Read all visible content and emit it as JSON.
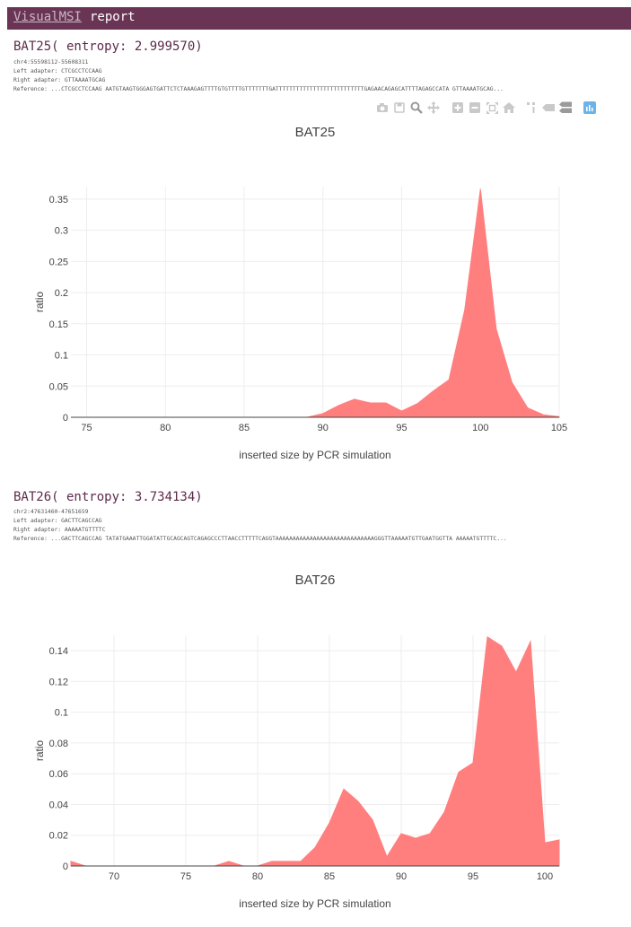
{
  "app": {
    "brand": "VisualMSI",
    "title_rest": "report"
  },
  "colors": {
    "header_bg": "#6a3555",
    "heading": "#5d2a4a",
    "fill": "#ff7f7f",
    "grid": "#eeeeee"
  },
  "toolbar": {
    "icons": [
      "camera-icon",
      "save-icon",
      "zoom-icon",
      "pan-icon",
      "zoom-in-icon",
      "zoom-out-icon",
      "autoscale-icon",
      "home-icon",
      "spike-lines-icon",
      "hover-closest-icon",
      "hover-compare-icon",
      "plotly-logo-icon"
    ]
  },
  "sections": [
    {
      "heading": "BAT25( entropy: 2.999570)",
      "locus": "chr4:55598112-55608311",
      "left_adapter": "Left adapter: CTCGCCTCCAAG",
      "right_adapter": "Right adapter: GTTAAAATGCAG",
      "reference": "Reference: ...CTCGCCTCCAAG AATGTAAGTGGGAGTGATTCTCTAAAGAGTTTTGTGTTTTGTTTTTTTGATTTTTTTTTTTTTTTTTTTTTTTTTTGAGAACAGAGCATTTTAGAGCCATA GTTAAAATGCAG..."
    },
    {
      "heading": "BAT26( entropy: 3.734134)",
      "locus": "chr2:47631460-47651659",
      "left_adapter": "Left adapter: GACTTCAGCCAG",
      "right_adapter": "Right adapter: AAAAATGTTTTC",
      "reference": "Reference: ...GACTTCAGCCAG TATATGAAATTGGATATTGCAGCAGTCAGAGCCCTTAACCTTTTTCAGGTAAAAAAAAAAAAAAAAAAAAAAAAAAAAAGGGTTAAAAATGTTGAATGGTTA AAAAATGTTTTC..."
    }
  ],
  "chart_data": [
    {
      "type": "area",
      "title": "BAT25",
      "xlabel": "inserted size by PCR simulation",
      "ylabel": "ratio",
      "xlim": [
        74,
        105
      ],
      "ylim": [
        0,
        0.37
      ],
      "xticks": [
        75,
        80,
        85,
        90,
        95,
        100,
        105
      ],
      "yticks": [
        0,
        0.05,
        0.1,
        0.15,
        0.2,
        0.25,
        0.3,
        0.35
      ],
      "ytick_labels": [
        "0",
        "0.05",
        "0.1",
        "0.15",
        "0.2",
        "0.25",
        "0.3",
        "0.35"
      ],
      "x": [
        74,
        75,
        76,
        77,
        78,
        79,
        80,
        81,
        82,
        83,
        84,
        85,
        86,
        87,
        88,
        89,
        90,
        91,
        92,
        93,
        94,
        95,
        96,
        97,
        98,
        99,
        100,
        101,
        102,
        103,
        104,
        105
      ],
      "y": [
        0,
        0,
        0,
        0,
        0,
        0,
        0,
        0,
        0,
        0,
        0,
        0,
        0,
        0,
        0,
        0,
        0.006,
        0.019,
        0.029,
        0.023,
        0.023,
        0.01,
        0.022,
        0.042,
        0.06,
        0.172,
        0.366,
        0.142,
        0.056,
        0.015,
        0.004,
        0.001
      ]
    },
    {
      "type": "area",
      "title": "BAT26",
      "xlabel": "inserted size by PCR simulation",
      "ylabel": "ratio",
      "xlim": [
        67,
        101
      ],
      "ylim": [
        0,
        0.15
      ],
      "xticks": [
        70,
        75,
        80,
        85,
        90,
        95,
        100
      ],
      "yticks": [
        0,
        0.02,
        0.04,
        0.06,
        0.08,
        0.1,
        0.12,
        0.14
      ],
      "ytick_labels": [
        "0",
        "0.02",
        "0.04",
        "0.06",
        "0.08",
        "0.1",
        "0.12",
        "0.14"
      ],
      "x": [
        67,
        68,
        69,
        70,
        71,
        72,
        73,
        74,
        75,
        76,
        77,
        78,
        79,
        80,
        81,
        82,
        83,
        84,
        85,
        86,
        87,
        88,
        89,
        90,
        91,
        92,
        93,
        94,
        95,
        96,
        97,
        98,
        99,
        100,
        101
      ],
      "y": [
        0.003,
        0,
        0,
        0,
        0,
        0,
        0,
        0,
        0,
        0,
        0,
        0.003,
        0,
        0,
        0.003,
        0.003,
        0.003,
        0.012,
        0.028,
        0.05,
        0.042,
        0.03,
        0.006,
        0.021,
        0.018,
        0.021,
        0.035,
        0.061,
        0.067,
        0.149,
        0.143,
        0.126,
        0.146,
        0.015,
        0.017
      ]
    }
  ]
}
